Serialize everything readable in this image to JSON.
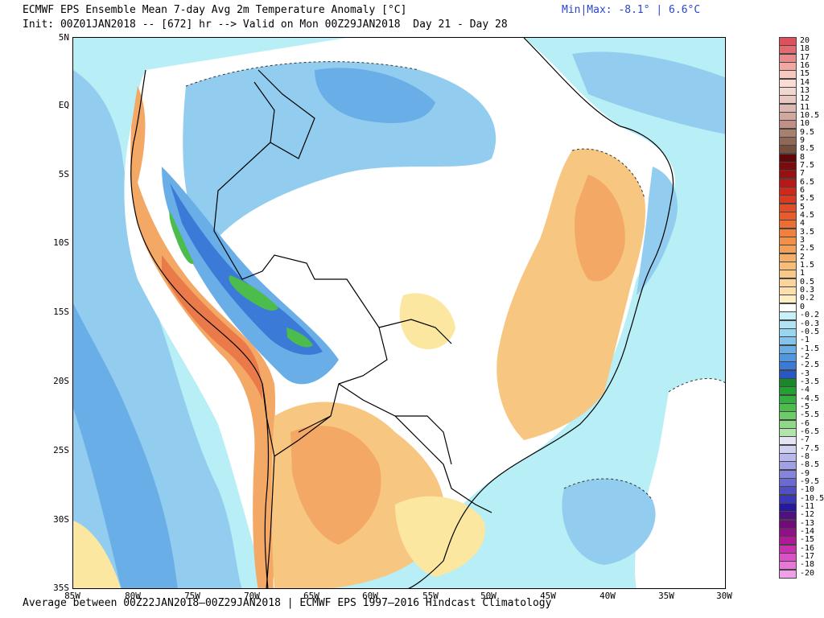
{
  "header": {
    "title": "ECMWF EPS Ensemble Mean 7-day Avg 2m Temperature Anomaly [°C]",
    "subtitle": "Init: 00Z01JAN2018 -- [672] hr --> Valid on Mon 00Z29JAN2018  Day 21 - Day 28",
    "minmax": "Min|Max: -8.1° | 6.6°C"
  },
  "footer": {
    "text": "Average between 00Z22JAN2018–00Z29JAN2018 | ECMWF EPS 1997–2016 Hindcast Climatology"
  },
  "map": {
    "lat_labels": [
      "5N",
      "EQ",
      "5S",
      "10S",
      "15S",
      "20S",
      "25S",
      "30S",
      "35S"
    ],
    "lon_labels": [
      "85W",
      "80W",
      "75W",
      "70W",
      "65W",
      "60W",
      "55W",
      "50W",
      "45W",
      "40W",
      "35W",
      "30W"
    ],
    "colors": {
      "ocean_pale": "#b8eef5",
      "light_blue": "#92cdf0",
      "mid_blue": "#6aaee8",
      "deep_blue": "#3c7ad8",
      "green": "#4cbd4c",
      "light_green": "#8fe08f",
      "light_yellow": "#fbe7a0",
      "light_orange": "#f7c680",
      "orange": "#f3a865",
      "red_orange": "#ea7a4a",
      "border": "#000000",
      "contour": "#333333"
    }
  },
  "colorbar": {
    "entries": [
      {
        "label": "20",
        "color": "#e0505a"
      },
      {
        "label": "18",
        "color": "#e36a70"
      },
      {
        "label": "17",
        "color": "#ea8a8a"
      },
      {
        "label": "16",
        "color": "#f0a8a0"
      },
      {
        "label": "15",
        "color": "#f6c8c0"
      },
      {
        "label": "14",
        "color": "#fadcd4"
      },
      {
        "label": "13",
        "color": "#f0d8d0"
      },
      {
        "label": "12",
        "color": "#e8c8c0"
      },
      {
        "label": "11",
        "color": "#dcb8b0"
      },
      {
        "label": "10.5",
        "color": "#d0a89e"
      },
      {
        "label": "10",
        "color": "#c09088"
      },
      {
        "label": "9.5",
        "color": "#a88070"
      },
      {
        "label": "9",
        "color": "#906858"
      },
      {
        "label": "8.5",
        "color": "#785040"
      },
      {
        "label": "8",
        "color": "#600808"
      },
      {
        "label": "7.5",
        "color": "#7a0c0c"
      },
      {
        "label": "7",
        "color": "#981010"
      },
      {
        "label": "6.5",
        "color": "#b81818"
      },
      {
        "label": "6",
        "color": "#cc2a1c"
      },
      {
        "label": "5.5",
        "color": "#da3a20"
      },
      {
        "label": "5",
        "color": "#e24c26"
      },
      {
        "label": "4.5",
        "color": "#e85c2c"
      },
      {
        "label": "4",
        "color": "#ec6e34"
      },
      {
        "label": "3.5",
        "color": "#f0803c"
      },
      {
        "label": "3",
        "color": "#f29048"
      },
      {
        "label": "2.5",
        "color": "#f4a058"
      },
      {
        "label": "2",
        "color": "#f5ae68"
      },
      {
        "label": "1.5",
        "color": "#f7bc78"
      },
      {
        "label": "1",
        "color": "#f8c88a"
      },
      {
        "label": "0.5",
        "color": "#fad49c"
      },
      {
        "label": "0.3",
        "color": "#fbe0ae"
      },
      {
        "label": "0.2",
        "color": "#fdeec4"
      },
      {
        "label": "0",
        "color": "#ffffff"
      },
      {
        "label": "-0.2",
        "color": "#c8f0f8"
      },
      {
        "label": "-0.3",
        "color": "#b0e4f4"
      },
      {
        "label": "-0.5",
        "color": "#98d6f0"
      },
      {
        "label": "-1",
        "color": "#84c4ec"
      },
      {
        "label": "-1.5",
        "color": "#6aaee8"
      },
      {
        "label": "-2",
        "color": "#5096e0"
      },
      {
        "label": "-2.5",
        "color": "#3c7ad8"
      },
      {
        "label": "-3",
        "color": "#2858c8"
      },
      {
        "label": "-3.5",
        "color": "#18882a"
      },
      {
        "label": "-4",
        "color": "#22a030"
      },
      {
        "label": "-4.5",
        "color": "#34b040"
      },
      {
        "label": "-5",
        "color": "#4cbd4c"
      },
      {
        "label": "-5.5",
        "color": "#6ccc6a"
      },
      {
        "label": "-6",
        "color": "#8fd88a"
      },
      {
        "label": "-6.5",
        "color": "#b0e4aa"
      },
      {
        "label": "-7",
        "color": "#e4e4f4"
      },
      {
        "label": "-7.5",
        "color": "#d0d0f0"
      },
      {
        "label": "-8",
        "color": "#b8b8ec"
      },
      {
        "label": "-8.5",
        "color": "#a0a0e4"
      },
      {
        "label": "-9",
        "color": "#8484dc"
      },
      {
        "label": "-9.5",
        "color": "#6a6ad0"
      },
      {
        "label": "-10",
        "color": "#5050c4"
      },
      {
        "label": "-10.5",
        "color": "#3838b8"
      },
      {
        "label": "-11",
        "color": "#2818a0"
      },
      {
        "label": "-12",
        "color": "#501080"
      },
      {
        "label": "-13",
        "color": "#700c78"
      },
      {
        "label": "-14",
        "color": "#901088"
      },
      {
        "label": "-15",
        "color": "#b01898"
      },
      {
        "label": "-16",
        "color": "#c830b0"
      },
      {
        "label": "-17",
        "color": "#dc50c8"
      },
      {
        "label": "-18",
        "color": "#e878d8"
      },
      {
        "label": "-20",
        "color": "#f0a0e8"
      }
    ]
  }
}
